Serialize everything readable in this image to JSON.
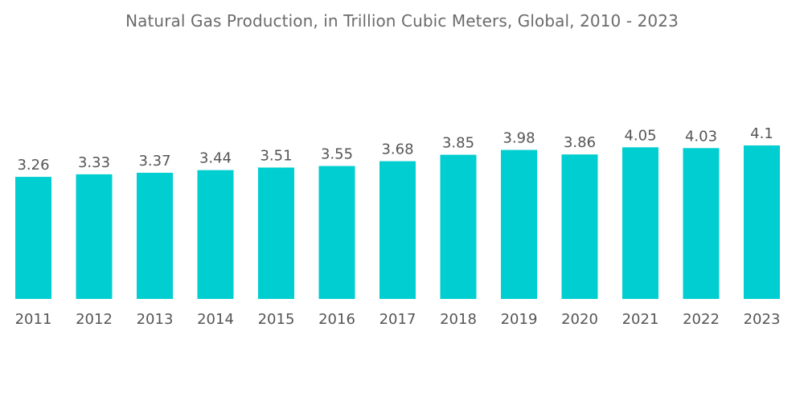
{
  "chart_data": {
    "type": "bar",
    "title": "Natural Gas Production, in Trillion Cubic Meters, Global, 2010 - 2023",
    "xlabel": "",
    "ylabel": "",
    "categories": [
      "2011",
      "2012",
      "2013",
      "2014",
      "2015",
      "2016",
      "2017",
      "2018",
      "2019",
      "2020",
      "2021",
      "2022",
      "2023"
    ],
    "values": [
      3.26,
      3.33,
      3.37,
      3.44,
      3.51,
      3.55,
      3.68,
      3.85,
      3.98,
      3.86,
      4.05,
      4.03,
      4.1
    ],
    "value_labels": [
      "3.26",
      "3.33",
      "3.37",
      "3.44",
      "3.51",
      "3.55",
      "3.68",
      "3.85",
      "3.98",
      "3.86",
      "4.05",
      "4.03",
      "4.1"
    ],
    "ylim": [
      0,
      4.1
    ],
    "grid": false,
    "legend": "none",
    "bar_color": "#00CED1",
    "text_color": "#555555"
  }
}
